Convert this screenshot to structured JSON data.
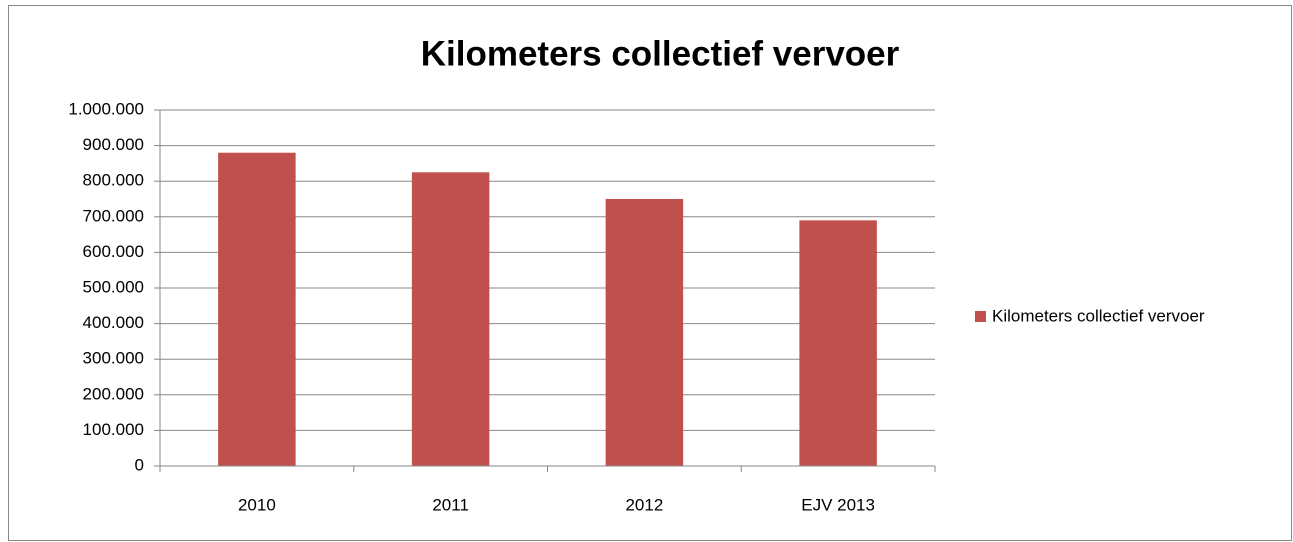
{
  "chart_data": {
    "type": "bar",
    "title": "Kilometers collectief vervoer",
    "categories": [
      "2010",
      "2011",
      "2012",
      "EJV 2013"
    ],
    "series": [
      {
        "name": "Kilometers collectief vervoer",
        "color": "#c0504d",
        "values": [
          880000,
          825000,
          750000,
          690000
        ]
      }
    ],
    "ylim": [
      0,
      1000000
    ],
    "yticks": [
      0,
      {
        "value": 100000,
        "label": "100.000"
      },
      {
        "value": 200000,
        "label": "200.000"
      },
      {
        "value": 300000,
        "label": "300.000"
      },
      {
        "value": 400000,
        "label": "400.000"
      },
      {
        "value": 500000,
        "label": "500.000"
      },
      {
        "value": 600000,
        "label": "600.000"
      },
      {
        "value": 700000,
        "label": "700.000"
      },
      {
        "value": 800000,
        "label": "800.000"
      },
      {
        "value": 900000,
        "label": "900.000"
      },
      {
        "value": 1000000,
        "label": "1.000.000"
      }
    ],
    "grid": true,
    "legend": "right"
  }
}
